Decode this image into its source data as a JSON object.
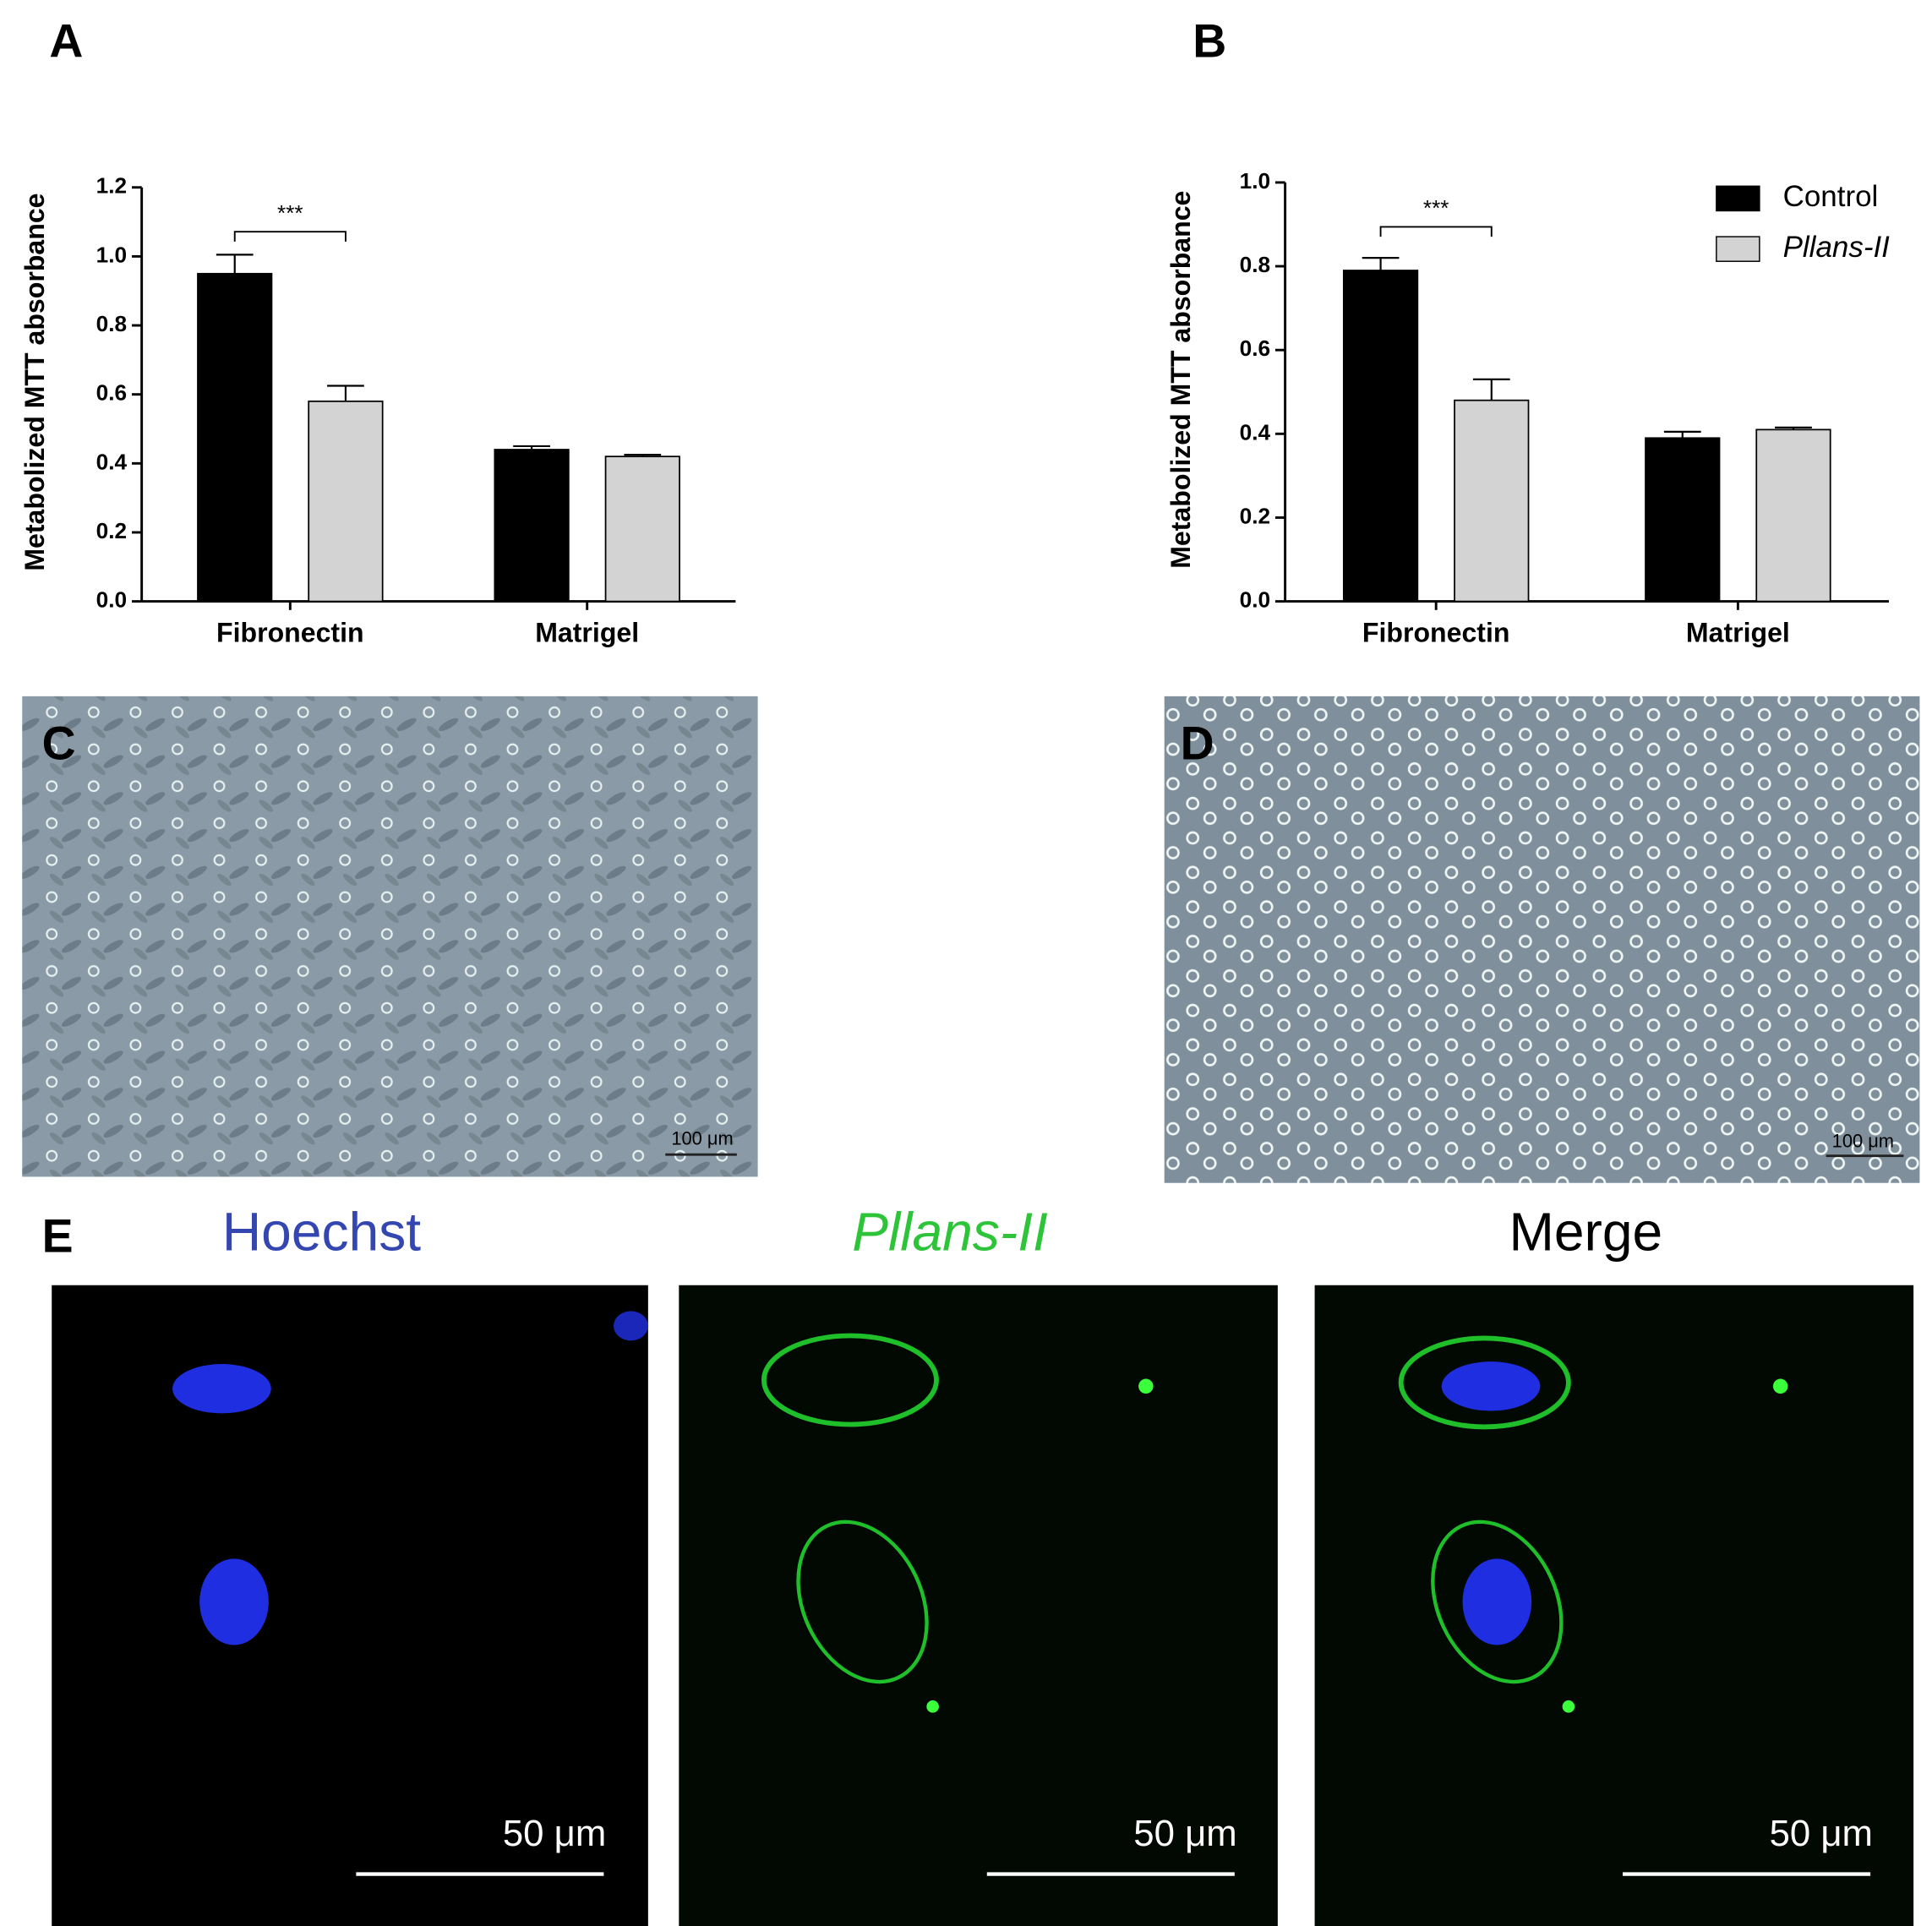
{
  "chart_data": [
    {
      "type": "bar",
      "y_label": "Metabolized MTT absorbance",
      "categories": [
        "Fibronectin",
        "Matrigel"
      ],
      "series": [
        {
          "color": "#000000",
          "values": [
            0.95,
            0.44
          ],
          "errors": [
            0.055,
            0.01
          ]
        },
        {
          "color": "#d3d3d3",
          "values": [
            0.58,
            0.42
          ],
          "errors": [
            0.045,
            0.005
          ]
        }
      ],
      "ylim": [
        0,
        1.2
      ],
      "yticks": [
        {
          "value": 0,
          "label": "0.0"
        },
        0.2,
        0.4,
        0.6,
        0.8,
        {
          "value": 1,
          "label": "1.0"
        },
        1.2
      ],
      "annotation": "***"
    },
    {
      "type": "bar",
      "y_label": "Metabolized MTT absorbance",
      "categories": [
        "Fibronectin",
        "Matrigel"
      ],
      "series": [
        {
          "name": "Control",
          "color": "#000000",
          "values": [
            0.79,
            0.39
          ],
          "errors": [
            0.03,
            0.015
          ]
        },
        {
          "name": "Pllans-II",
          "color": "#d3d3d3",
          "values": [
            0.48,
            0.41
          ],
          "errors": [
            0.05,
            0.005
          ]
        }
      ],
      "ylim": [
        0,
        1
      ],
      "yticks": [
        {
          "value": 0,
          "label": "0.0"
        },
        0.2,
        0.4,
        0.6,
        0.8,
        {
          "value": 1,
          "label": "1.0"
        }
      ],
      "legend": "upper right",
      "annotation": "***"
    }
  ],
  "panel_labels": [
    "A",
    "B",
    "C",
    "D",
    "E"
  ],
  "micrographs": [
    {
      "scale_bar": "100 μm"
    },
    {
      "scale_bar": "100 μm"
    }
  ],
  "fluorescence": {
    "channels": [
      "Hoechst",
      "Pllans-II",
      "Merge"
    ],
    "scale_bars": [
      "50 μm",
      "50 μm",
      "50 μm"
    ]
  }
}
